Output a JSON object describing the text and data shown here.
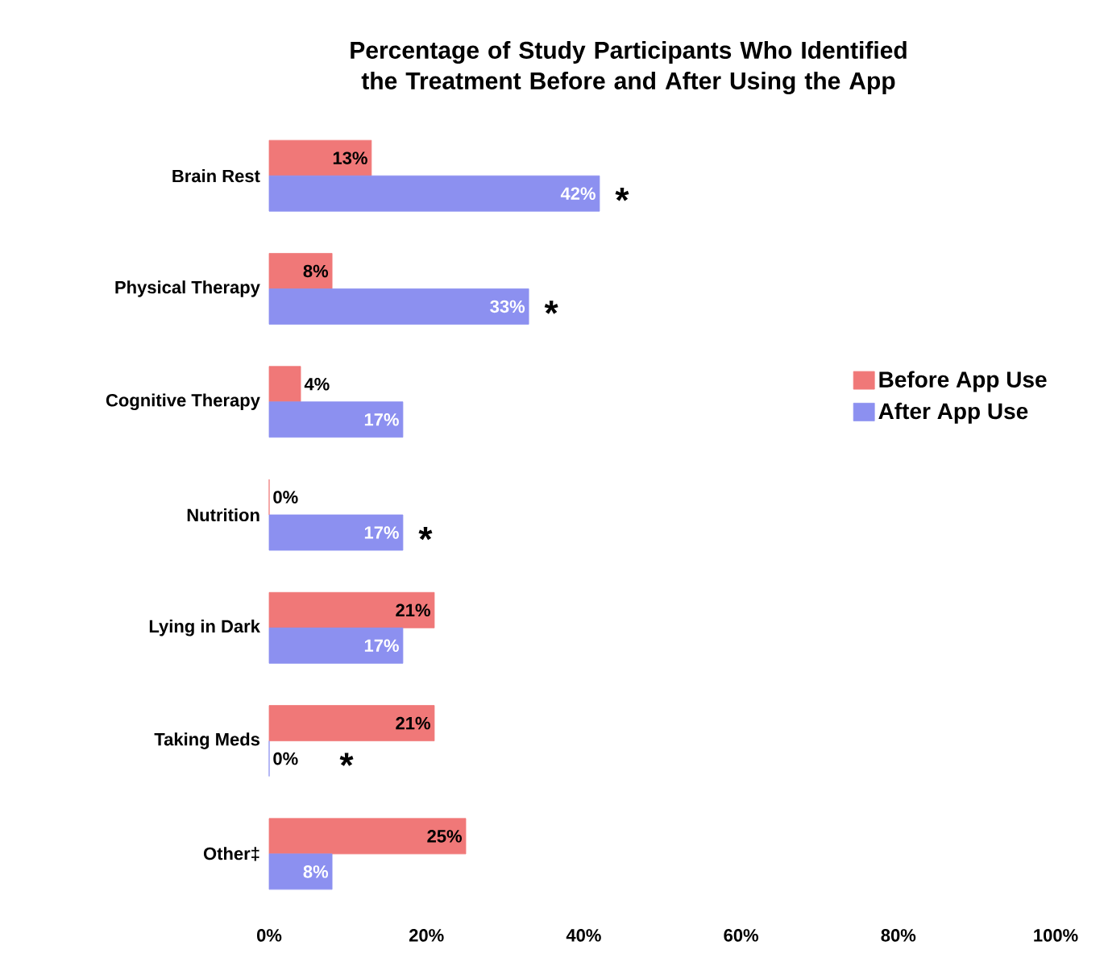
{
  "chart_data": {
    "type": "bar",
    "orientation": "horizontal",
    "title": "Percentage of Study Participants Who Identified the Treatment Before and After Using the App",
    "categories": [
      "Brain Rest",
      "Physical Therapy",
      "Cognitive Therapy",
      "Nutrition",
      "Lying in Dark",
      "Taking Meds",
      "Other‡"
    ],
    "series": [
      {
        "name": "Before App Use",
        "color": "#f07878",
        "values": [
          13,
          8,
          4,
          0,
          21,
          21,
          25
        ],
        "value_labels": [
          "13%",
          "8%",
          "4%",
          "0%",
          "21%",
          "21%",
          "25%"
        ]
      },
      {
        "name": "After App Use",
        "color": "#8c90f0",
        "values": [
          42,
          33,
          17,
          17,
          17,
          0,
          8
        ],
        "value_labels": [
          "42%",
          "33%",
          "17%",
          "17%",
          "17%",
          "0%",
          "8%"
        ]
      }
    ],
    "xlim": [
      0,
      100
    ],
    "xticks": [
      {
        "value": 0,
        "label": "0%"
      },
      {
        "value": 20,
        "label": "20%"
      },
      {
        "value": 40,
        "label": "40%"
      },
      {
        "value": 60,
        "label": "60%"
      },
      {
        "value": 80,
        "label": "80%"
      },
      {
        "value": 100,
        "label": "100%"
      }
    ],
    "annotations": [
      {
        "text": "*",
        "x": 42,
        "y": "Brain Rest"
      },
      {
        "text": "*",
        "x": 33,
        "y": "Physical Therapy"
      },
      {
        "text": "*",
        "x": 17,
        "y": "Nutrition"
      },
      {
        "text": "*",
        "x": 0,
        "y": "Taking Meds"
      }
    ],
    "legend": "right"
  }
}
